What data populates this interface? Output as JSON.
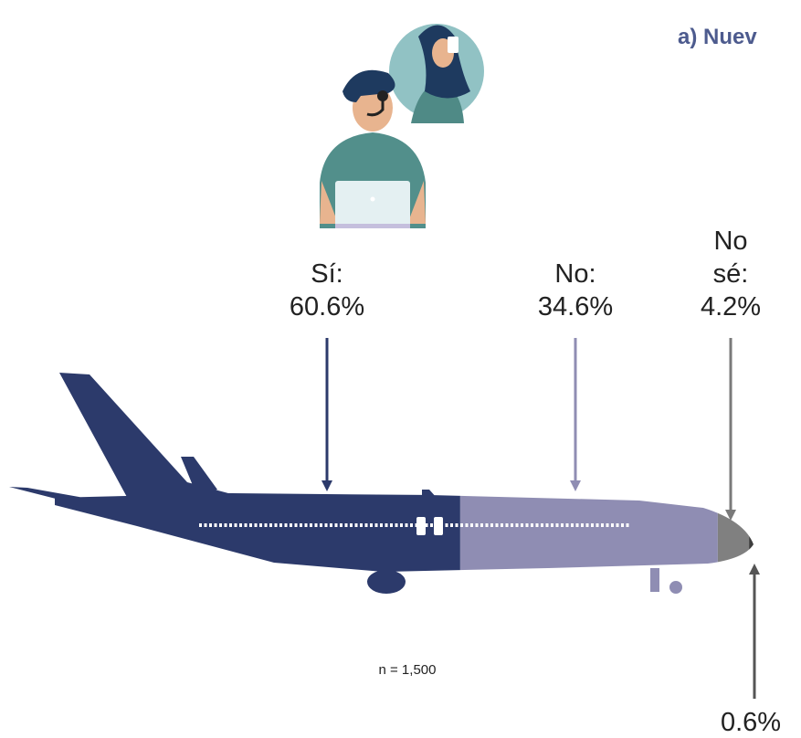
{
  "chart_data": {
    "type": "plane",
    "title": "a) Nuev",
    "categories": [
      "Sí:",
      "No:",
      "No sé:",
      null
    ],
    "values": [
      60.6,
      34.6,
      4.2,
      0.6
    ],
    "value_labels": [
      "60.6%",
      "34.6%",
      "4.2%",
      "0.6%"
    ],
    "colors": [
      "#2c3a6b",
      "#8f8db3",
      "#808080",
      "#3d3d3d"
    ],
    "note": "n = 1,500"
  }
}
